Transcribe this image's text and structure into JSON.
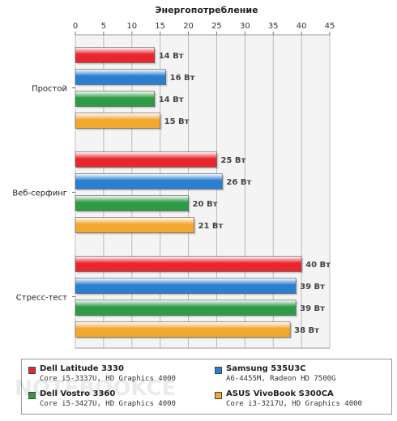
{
  "chart_data": {
    "type": "bar",
    "orientation": "horizontal",
    "title": "Энергопотребление",
    "xlim": [
      0,
      45
    ],
    "ticks": [
      0,
      5,
      10,
      15,
      20,
      25,
      30,
      35,
      40,
      45
    ],
    "grid": true,
    "categories": [
      "Простой",
      "Веб-серфинг",
      "Стресс-тест"
    ],
    "unit": "Вт",
    "series": [
      {
        "name": "Dell Latitude 3330",
        "spec": "Core i5-3337U, HD Graphics 4000",
        "color": "#e8262e",
        "values": [
          14,
          25,
          40
        ]
      },
      {
        "name": "Samsung 535U3C",
        "spec": "A6-4455M, Radeon HD 7500G",
        "color": "#2b7fd0",
        "values": [
          16,
          26,
          39
        ]
      },
      {
        "name": "Dell Vostro 3360",
        "spec": "Core i5-3427U, HD Graphics 4000",
        "color": "#2e9b45",
        "values": [
          14,
          20,
          39
        ]
      },
      {
        "name": "ASUS VivoBook S300CA",
        "spec": "Core i3-3217U, HD Graphics 4000",
        "color": "#f0a830",
        "values": [
          15,
          21,
          38
        ]
      }
    ],
    "legend_position": "bottom"
  },
  "watermark": "NOTEBOOKCENTER"
}
